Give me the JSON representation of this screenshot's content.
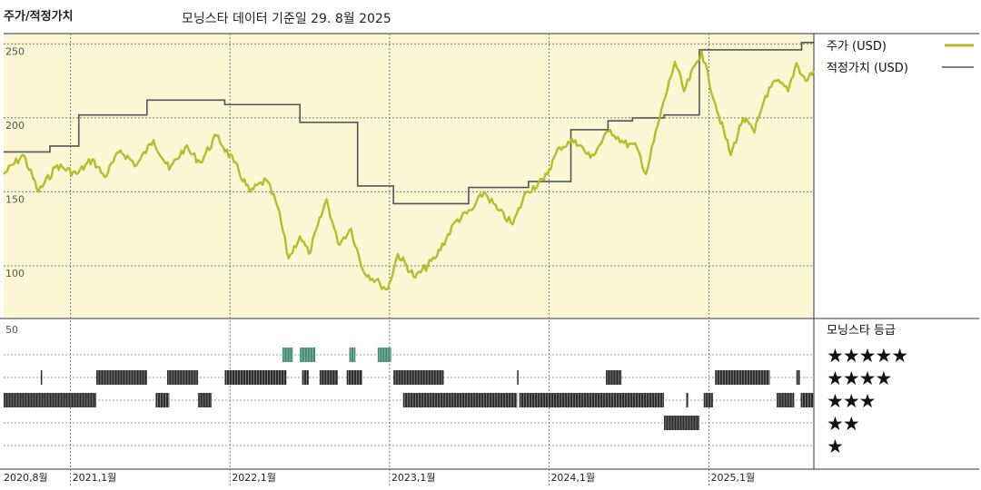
{
  "header": {
    "title": "주가/적정가치",
    "subtitle": "모닝스타 데이터 기준일 29. 8월 2025"
  },
  "colors": {
    "panel_bg": "#fbf6d3",
    "price": "#b5bd2b",
    "fair_value": "#555555",
    "five_star": "#3f8b6f",
    "rating_bar": "#2c2c2c",
    "grid": "#7a7a7a"
  },
  "chart_data": {
    "type": "line",
    "ylim": [
      65,
      257
    ],
    "yticks": [
      250,
      200,
      150,
      100
    ],
    "x_range": [
      "2020-08-01",
      "2025-08-29"
    ],
    "x_ticks": [
      {
        "date": "2020-08-01",
        "label": "2020,8월"
      },
      {
        "date": "2021-01-01",
        "label": "2021,1월"
      },
      {
        "date": "2022-01-01",
        "label": "2022,1월"
      },
      {
        "date": "2023-01-01",
        "label": "2023,1월"
      },
      {
        "date": "2024-01-01",
        "label": "2024,1월"
      },
      {
        "date": "2025-01-01",
        "label": "2025,1월"
      }
    ],
    "legend": [
      {
        "label": "주가 (USD)",
        "series": "price"
      },
      {
        "label": "적정가치 (USD)",
        "series": "fair_value"
      }
    ],
    "series": [
      {
        "id": "price",
        "name": "주가 (USD)",
        "points": [
          [
            "2020-08-01",
            162
          ],
          [
            "2020-09-15",
            175
          ],
          [
            "2020-10-20",
            150
          ],
          [
            "2020-12-01",
            168
          ],
          [
            "2021-01-15",
            162
          ],
          [
            "2021-02-20",
            172
          ],
          [
            "2021-03-20",
            160
          ],
          [
            "2021-04-25",
            178
          ],
          [
            "2021-06-01",
            168
          ],
          [
            "2021-07-10",
            185
          ],
          [
            "2021-08-15",
            165
          ],
          [
            "2021-09-20",
            180
          ],
          [
            "2021-10-25",
            170
          ],
          [
            "2021-12-01",
            188
          ],
          [
            "2022-01-10",
            170
          ],
          [
            "2022-02-15",
            150
          ],
          [
            "2022-03-25",
            158
          ],
          [
            "2022-04-20",
            140
          ],
          [
            "2022-05-15",
            105
          ],
          [
            "2022-06-10",
            120
          ],
          [
            "2022-07-01",
            108
          ],
          [
            "2022-08-10",
            145
          ],
          [
            "2022-09-05",
            115
          ],
          [
            "2022-10-05",
            125
          ],
          [
            "2022-11-01",
            97
          ],
          [
            "2022-12-10",
            88
          ],
          [
            "2022-12-28",
            84
          ],
          [
            "2023-01-20",
            108
          ],
          [
            "2023-03-01",
            92
          ],
          [
            "2023-04-15",
            105
          ],
          [
            "2023-06-01",
            130
          ],
          [
            "2023-07-10",
            138
          ],
          [
            "2023-08-05",
            150
          ],
          [
            "2023-09-05",
            138
          ],
          [
            "2023-10-10",
            128
          ],
          [
            "2023-11-10",
            150
          ],
          [
            "2023-12-20",
            158
          ],
          [
            "2024-01-25",
            180
          ],
          [
            "2024-03-01",
            185
          ],
          [
            "2024-04-05",
            173
          ],
          [
            "2024-05-20",
            192
          ],
          [
            "2024-06-20",
            183
          ],
          [
            "2024-07-20",
            180
          ],
          [
            "2024-08-10",
            162
          ],
          [
            "2024-09-10",
            200
          ],
          [
            "2024-10-15",
            238
          ],
          [
            "2024-11-05",
            218
          ],
          [
            "2024-12-15",
            245
          ],
          [
            "2025-01-15",
            210
          ],
          [
            "2025-02-20",
            175
          ],
          [
            "2025-03-20",
            200
          ],
          [
            "2025-04-15",
            190
          ],
          [
            "2025-05-10",
            215
          ],
          [
            "2025-06-05",
            225
          ],
          [
            "2025-07-01",
            218
          ],
          [
            "2025-07-20",
            237
          ],
          [
            "2025-08-10",
            225
          ],
          [
            "2025-08-29",
            232
          ]
        ]
      },
      {
        "id": "fair_value",
        "name": "적정가치 (USD)",
        "steps": [
          [
            "2020-08-01",
            177
          ],
          [
            "2020-11-15",
            181
          ],
          [
            "2021-01-20",
            202
          ],
          [
            "2021-06-25",
            212
          ],
          [
            "2021-12-20",
            209
          ],
          [
            "2022-06-10",
            197
          ],
          [
            "2022-10-20",
            154
          ],
          [
            "2023-01-10",
            142
          ],
          [
            "2023-07-01",
            153
          ],
          [
            "2023-11-15",
            157
          ],
          [
            "2024-02-20",
            192
          ],
          [
            "2024-05-15",
            198
          ],
          [
            "2024-07-10",
            200
          ],
          [
            "2024-09-20",
            202
          ],
          [
            "2024-12-10",
            246
          ],
          [
            "2025-08-01",
            251
          ],
          [
            "2025-08-29",
            251
          ]
        ]
      }
    ],
    "rating_panel": {
      "title": "모닝스타 등급",
      "axis_label": "50",
      "rows": [
        {
          "stars": 5,
          "label": "★★★★★",
          "segments": [
            [
              "2022-05-01",
              "2022-05-25"
            ],
            [
              "2022-06-10",
              "2022-07-15"
            ],
            [
              "2022-10-01",
              "2022-10-15"
            ],
            [
              "2022-12-05",
              "2023-01-05"
            ]
          ]
        },
        {
          "stars": 4,
          "label": "★★★★",
          "segments": [
            [
              "2020-10-25",
              "2020-10-27"
            ],
            [
              "2021-03-01",
              "2021-06-25"
            ],
            [
              "2021-08-10",
              "2021-10-20"
            ],
            [
              "2021-12-20",
              "2022-05-10"
            ],
            [
              "2022-06-15",
              "2022-06-30"
            ],
            [
              "2022-07-25",
              "2022-09-05"
            ],
            [
              "2022-09-25",
              "2022-10-30"
            ],
            [
              "2023-01-10",
              "2023-05-05"
            ],
            [
              "2023-10-20",
              "2023-10-23"
            ],
            [
              "2024-05-10",
              "2024-06-15"
            ],
            [
              "2025-01-15",
              "2025-05-20"
            ],
            [
              "2025-07-20",
              "2025-07-28"
            ]
          ]
        },
        {
          "stars": 3,
          "label": "★★★",
          "segments": [
            [
              "2020-08-01",
              "2021-03-01"
            ],
            [
              "2021-07-15",
              "2021-08-15"
            ],
            [
              "2021-10-20",
              "2021-11-20"
            ],
            [
              "2023-02-01",
              "2023-10-20"
            ],
            [
              "2023-10-25",
              "2024-09-20"
            ],
            [
              "2024-11-10",
              "2024-11-15"
            ],
            [
              "2024-12-20",
              "2025-01-10"
            ],
            [
              "2025-06-05",
              "2025-07-15"
            ],
            [
              "2025-07-30",
              "2025-08-29"
            ]
          ]
        },
        {
          "stars": 2,
          "label": "★★",
          "segments": [
            [
              "2024-09-20",
              "2024-12-10"
            ]
          ]
        },
        {
          "stars": 1,
          "label": "★",
          "segments": []
        }
      ]
    }
  }
}
